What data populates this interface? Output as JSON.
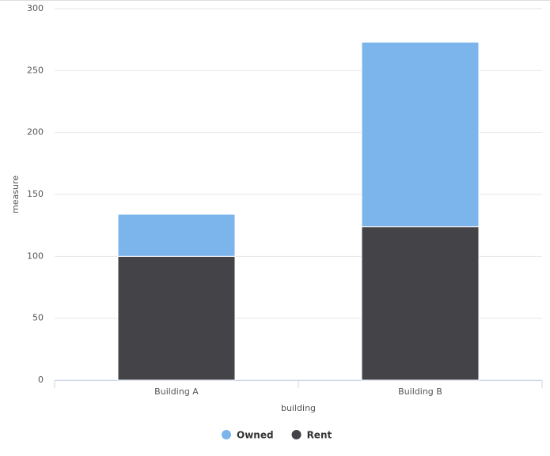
{
  "chart_data": {
    "type": "stacked_bar",
    "categories": [
      "Building A",
      "Building B"
    ],
    "series": [
      {
        "name": "Owned",
        "color": "#7cb5ec",
        "values": [
          34,
          149
        ]
      },
      {
        "name": "Rent",
        "color": "#434348",
        "values": [
          100,
          124
        ]
      }
    ],
    "ylim": [
      0,
      300
    ],
    "yticks": [
      0,
      50,
      100,
      150,
      200,
      250,
      300
    ],
    "x_label": "building",
    "y_label": "measure",
    "grid": true
  }
}
